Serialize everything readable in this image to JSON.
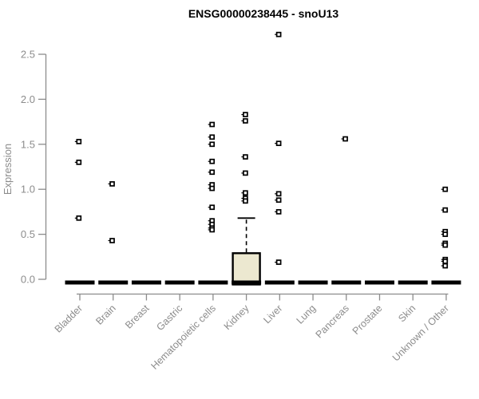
{
  "title": "ENSG00000238445 - snoU13",
  "chart_data": {
    "type": "boxplot",
    "title": "ENSG00000238445 - snoU13",
    "ylabel": "Expression",
    "xlabel": "",
    "ylim": [
      0,
      2.72
    ],
    "yticks": [
      0.0,
      0.5,
      1.0,
      1.5,
      2.0,
      2.5
    ],
    "grid": false,
    "legend": "none",
    "axis_color": "#8c8c8c",
    "point_color": "#000000",
    "box_fill_color": "#ece8d0",
    "categories": [
      "Bladder",
      "Brain",
      "Breast",
      "Gastric",
      "Hematopoietic cells",
      "Kidney",
      "Liver",
      "Lung",
      "Pancreas",
      "Prostate",
      "Skin",
      "Unknown / Other"
    ],
    "boxes": [
      {
        "category": "Bladder",
        "median": 0,
        "q1": 0,
        "q3": 0,
        "whisker_low": 0,
        "whisker_high": 0,
        "outliers": [
          1.53,
          1.3,
          0.68
        ]
      },
      {
        "category": "Brain",
        "median": 0,
        "q1": 0,
        "q3": 0,
        "whisker_low": 0,
        "whisker_high": 0,
        "outliers": [
          1.06,
          0.43
        ]
      },
      {
        "category": "Breast",
        "median": 0,
        "q1": 0,
        "q3": 0,
        "whisker_low": 0,
        "whisker_high": 0,
        "outliers": []
      },
      {
        "category": "Gastric",
        "median": 0,
        "q1": 0,
        "q3": 0,
        "whisker_low": 0,
        "whisker_high": 0,
        "outliers": []
      },
      {
        "category": "Hematopoietic cells",
        "median": 0,
        "q1": 0,
        "q3": 0,
        "whisker_low": 0,
        "whisker_high": 0,
        "outliers": [
          1.72,
          1.58,
          1.5,
          1.31,
          1.19,
          1.05,
          1.01,
          0.8,
          0.65,
          0.61,
          0.57,
          0.55
        ]
      },
      {
        "category": "Kidney",
        "median": 0,
        "q1": 0,
        "q3": 0.29,
        "whisker_low": 0,
        "whisker_high": 0.68,
        "outliers": [
          1.83,
          1.76,
          1.36,
          1.18,
          0.96,
          0.9,
          0.87
        ]
      },
      {
        "category": "Liver",
        "median": 0,
        "q1": 0,
        "q3": 0,
        "whisker_low": 0,
        "whisker_high": 0,
        "outliers": [
          2.72,
          1.51,
          0.95,
          0.88,
          0.75,
          0.19
        ]
      },
      {
        "category": "Lung",
        "median": 0,
        "q1": 0,
        "q3": 0,
        "whisker_low": 0,
        "whisker_high": 0,
        "outliers": []
      },
      {
        "category": "Pancreas",
        "median": 0,
        "q1": 0,
        "q3": 0,
        "whisker_low": 0,
        "whisker_high": 0,
        "outliers": [
          1.56
        ]
      },
      {
        "category": "Prostate",
        "median": 0,
        "q1": 0,
        "q3": 0,
        "whisker_low": 0,
        "whisker_high": 0,
        "outliers": []
      },
      {
        "category": "Skin",
        "median": 0,
        "q1": 0,
        "q3": 0,
        "whisker_low": 0,
        "whisker_high": 0,
        "outliers": []
      },
      {
        "category": "Unknown / Other",
        "median": 0,
        "q1": 0,
        "q3": 0,
        "whisker_low": 0,
        "whisker_high": 0,
        "outliers": [
          1.0,
          0.77,
          0.53,
          0.5,
          0.4,
          0.38,
          0.22,
          0.2,
          0.15
        ]
      }
    ]
  }
}
